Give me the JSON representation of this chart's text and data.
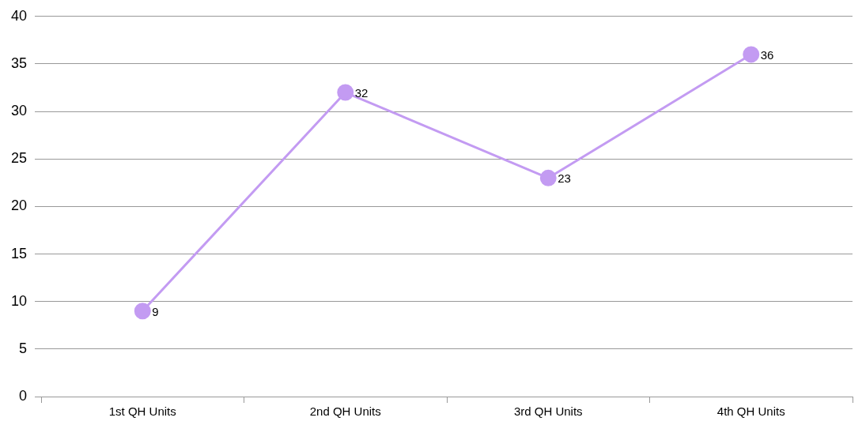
{
  "chart_data": {
    "type": "line",
    "categories": [
      "1st QH Units",
      "2nd QH Units",
      "3rd QH Units",
      "4th QH Units"
    ],
    "series": [
      {
        "color": "#c39bf2",
        "values": [
          9,
          32,
          23,
          36
        ]
      }
    ],
    "ylim": [
      0,
      40
    ],
    "yticks": [
      0,
      5,
      10,
      15,
      20,
      25,
      30,
      35,
      40
    ],
    "grid": "y",
    "marker": "circle",
    "line_style": "solid",
    "data_labels": true,
    "legend": false
  }
}
